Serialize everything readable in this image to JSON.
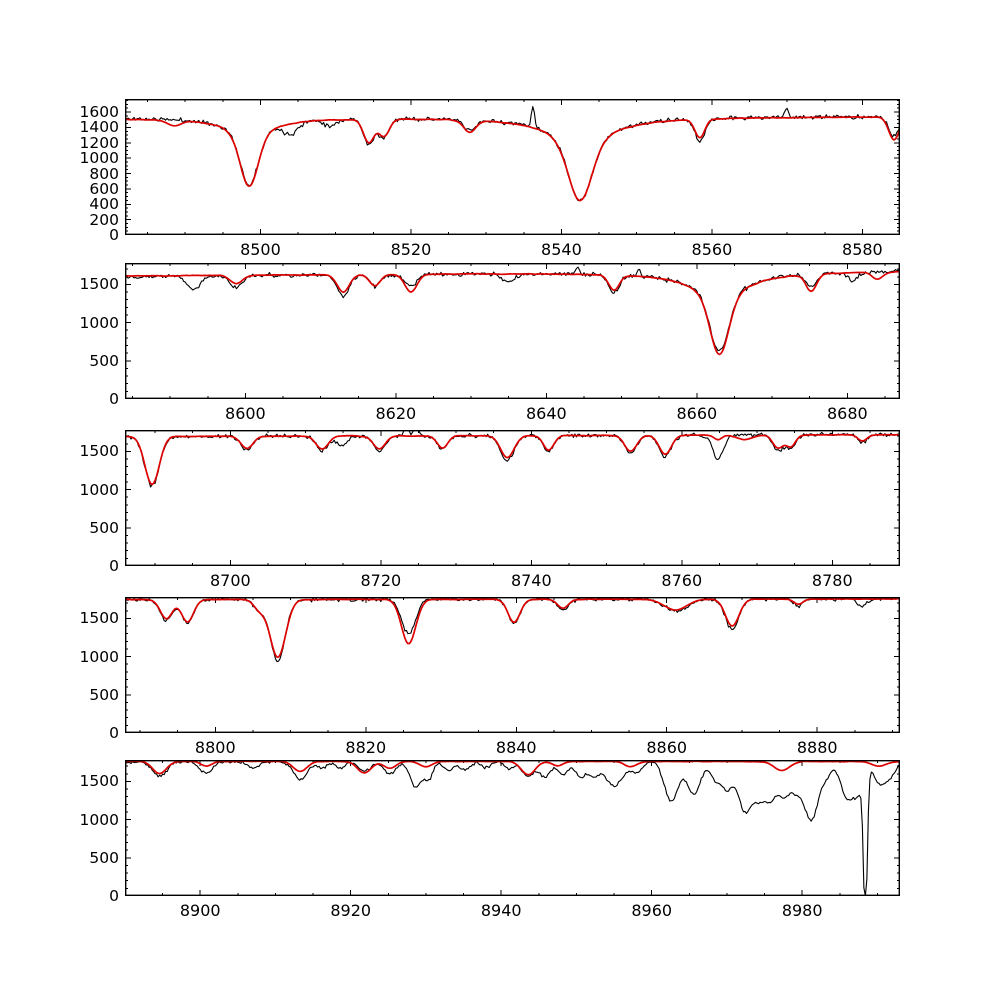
{
  "figure": {
    "background_color": "#ffffff",
    "axis_color": "#000000",
    "tick_label_color": "#000000"
  },
  "chart_data": {
    "type": "line",
    "grid": false,
    "legend": "none",
    "line_profile_format": "[center_wavelength, depth, gaussian_sigma, lorentz_gamma(optional), lorentz_depth(optional)]",
    "spike_format": "[center_wavelength, amplitude(+up/-down), sigma]",
    "series_styles": [
      {
        "name": "observed-spectrum",
        "color": "#000000"
      },
      {
        "name": "model-fit",
        "color": "#dd0000"
      }
    ],
    "panels": [
      {
        "type": "line",
        "xlim": [
          8482,
          8585
        ],
        "ylim": [
          0,
          1770
        ],
        "xticks": [
          8500,
          8520,
          8540,
          8560,
          8580
        ],
        "x_minor_step": 5,
        "yticks": [
          0,
          200,
          400,
          600,
          800,
          1000,
          1200,
          1400,
          1600
        ],
        "y_minor_step": 50,
        "continuum_observed": [
          1525,
          1545
        ],
        "continuum_model": [
          1516,
          1542
        ],
        "noise_observed": 13,
        "noise_model": 5,
        "seed": 11,
        "absorption_lines_model": [
          [
            8488.5,
            70,
            0.9
          ],
          [
            8498.5,
            610,
            1.15,
            3.2,
            270
          ],
          [
            8514.4,
            300,
            0.7
          ],
          [
            8516.4,
            220,
            0.7
          ],
          [
            8527.8,
            155,
            0.8
          ],
          [
            8542.5,
            690,
            1.5,
            4.5,
            390
          ],
          [
            8558.4,
            240,
            0.65
          ],
          [
            8584.2,
            300,
            0.7
          ]
        ],
        "absorption_lines_observed": [
          [
            8498.5,
            600,
            1.15,
            3.2,
            270
          ],
          [
            8504.0,
            140,
            1.0
          ],
          [
            8509.3,
            80,
            0.8
          ],
          [
            8514.4,
            330,
            0.7
          ],
          [
            8516.4,
            250,
            0.7
          ],
          [
            8527.8,
            140,
            0.8
          ],
          [
            8542.5,
            700,
            1.5,
            4.5,
            390
          ],
          [
            8558.4,
            300,
            0.65
          ],
          [
            8584.2,
            250,
            0.7
          ]
        ],
        "spikes_observed": [
          [
            8536.2,
            280,
            0.22
          ],
          [
            8569.9,
            130,
            0.25
          ]
        ]
      },
      {
        "type": "line",
        "xlim": [
          8584,
          8687
        ],
        "ylim": [
          0,
          1780
        ],
        "xticks": [
          8600,
          8620,
          8640,
          8660,
          8680
        ],
        "x_minor_step": 5,
        "yticks": [
          0,
          500,
          1000,
          1500
        ],
        "y_minor_step": 100,
        "continuum_observed": [
          1605,
          1680
        ],
        "continuum_model": [
          1612,
          1676
        ],
        "noise_observed": 13,
        "noise_model": 5,
        "seed": 22,
        "absorption_lines_model": [
          [
            8598.8,
            110,
            0.8
          ],
          [
            8613.0,
            230,
            0.8
          ],
          [
            8617.2,
            150,
            0.7
          ],
          [
            8622.0,
            230,
            0.8
          ],
          [
            8649.0,
            200,
            0.7
          ],
          [
            8663.0,
            720,
            1.2,
            4.2,
            360
          ],
          [
            8675.2,
            220,
            0.7
          ],
          [
            8684.0,
            90,
            0.7
          ]
        ],
        "absorption_lines_observed": [
          [
            8593.2,
            170,
            0.9
          ],
          [
            8598.8,
            160,
            0.8
          ],
          [
            8613.0,
            280,
            0.8
          ],
          [
            8617.2,
            150,
            0.7
          ],
          [
            8622.0,
            160,
            0.8
          ],
          [
            8635.0,
            90,
            0.8
          ],
          [
            8649.0,
            240,
            0.7
          ],
          [
            8663.0,
            690,
            1.2,
            4.2,
            350
          ],
          [
            8675.2,
            170,
            0.7
          ],
          [
            8680.8,
            120,
            0.6
          ]
        ],
        "spikes_observed": [
          [
            8644.2,
            100,
            0.25
          ],
          [
            8652.3,
            95,
            0.22
          ]
        ]
      },
      {
        "type": "line",
        "xlim": [
          8686,
          8789
        ],
        "ylim": [
          0,
          1780
        ],
        "xticks": [
          8700,
          8720,
          8740,
          8760,
          8780
        ],
        "x_minor_step": 5,
        "yticks": [
          0,
          500,
          1000,
          1500
        ],
        "y_minor_step": 100,
        "continuum_observed": [
          1690,
          1722
        ],
        "continuum_model": [
          1695,
          1718
        ],
        "noise_observed": 12,
        "noise_model": 4,
        "seed": 33,
        "absorption_lines_model": [
          [
            8689.6,
            630,
            0.95
          ],
          [
            8702.2,
            160,
            0.8
          ],
          [
            8712.2,
            170,
            0.8
          ],
          [
            8719.8,
            170,
            0.8
          ],
          [
            8728.2,
            160,
            0.7
          ],
          [
            8736.8,
            290,
            0.9
          ],
          [
            8742.3,
            190,
            0.7
          ],
          [
            8753.2,
            210,
            0.8
          ],
          [
            8757.8,
            250,
            0.8
          ],
          [
            8764.8,
            60,
            0.5
          ],
          [
            8768.3,
            60,
            1.0
          ],
          [
            8772.8,
            170,
            0.7
          ],
          [
            8774.5,
            150,
            0.6
          ],
          [
            8784.0,
            80,
            0.6
          ]
        ],
        "absorption_lines_observed": [
          [
            8689.6,
            650,
            0.95
          ],
          [
            8702.2,
            170,
            0.8
          ],
          [
            8712.2,
            190,
            0.8
          ],
          [
            8714.8,
            130,
            0.6
          ],
          [
            8719.8,
            190,
            0.8
          ],
          [
            8728.2,
            170,
            0.7
          ],
          [
            8736.8,
            330,
            0.9
          ],
          [
            8742.3,
            210,
            0.7
          ],
          [
            8753.2,
            230,
            0.8
          ],
          [
            8757.8,
            280,
            0.8
          ],
          [
            8764.8,
            320,
            0.7
          ],
          [
            8772.8,
            200,
            0.7
          ],
          [
            8774.5,
            170,
            0.6
          ],
          [
            8784.0,
            110,
            0.6
          ]
        ],
        "spikes_observed": [
          [
            8723.4,
            230,
            0.22
          ],
          [
            8724.7,
            300,
            0.25
          ]
        ]
      },
      {
        "type": "line",
        "xlim": [
          8788,
          8891
        ],
        "ylim": [
          0,
          1780
        ],
        "xticks": [
          8800,
          8820,
          8840,
          8860,
          8880
        ],
        "x_minor_step": 5,
        "yticks": [
          0,
          500,
          1000,
          1500
        ],
        "y_minor_step": 100,
        "continuum_observed": [
          1742,
          1758
        ],
        "continuum_model": [
          1746,
          1754
        ],
        "noise_observed": 11,
        "noise_model": 4,
        "seed": 44,
        "absorption_lines_model": [
          [
            8793.5,
            250,
            0.8
          ],
          [
            8796.3,
            290,
            0.8
          ],
          [
            8805.8,
            120,
            0.7
          ],
          [
            8808.3,
            760,
            1.05
          ],
          [
            8825.7,
            580,
            0.95
          ],
          [
            8839.7,
            300,
            0.8
          ],
          [
            8846.2,
            120,
            0.7
          ],
          [
            8861.2,
            140,
            1.5
          ],
          [
            8868.7,
            350,
            0.9
          ],
          [
            8877.5,
            70,
            0.6
          ]
        ],
        "absorption_lines_observed": [
          [
            8793.5,
            270,
            0.8
          ],
          [
            8796.3,
            300,
            0.8
          ],
          [
            8805.8,
            130,
            0.7
          ],
          [
            8808.3,
            800,
            1.0
          ],
          [
            8825.7,
            450,
            0.9
          ],
          [
            8839.7,
            310,
            0.8
          ],
          [
            8846.2,
            140,
            0.7
          ],
          [
            8861.2,
            160,
            1.5
          ],
          [
            8868.7,
            400,
            0.9
          ],
          [
            8877.5,
            90,
            0.6
          ],
          [
            8886.0,
            90,
            0.7
          ]
        ],
        "spikes_observed": []
      },
      {
        "type": "line",
        "xlim": [
          8890,
          8993
        ],
        "ylim": [
          0,
          1780
        ],
        "xticks": [
          8900,
          8920,
          8940,
          8960,
          8980
        ],
        "x_minor_step": 5,
        "yticks": [
          0,
          500,
          1000,
          1500
        ],
        "y_minor_step": 100,
        "continuum_observed": [
          1755,
          1760
        ],
        "continuum_model": [
          1762,
          1760
        ],
        "noise_observed": 9,
        "noise_model": 3,
        "seed": 55,
        "absorption_lines_model": [
          [
            8894.6,
            160,
            0.9
          ],
          [
            8900.8,
            60,
            0.7
          ],
          [
            8913.3,
            130,
            0.9
          ],
          [
            8921.8,
            150,
            0.9
          ],
          [
            8925.2,
            90,
            0.8
          ],
          [
            8930.0,
            70,
            0.8
          ],
          [
            8943.6,
            175,
            0.9
          ],
          [
            8947.5,
            60,
            0.7
          ],
          [
            8957.2,
            70,
            0.8
          ],
          [
            8977.3,
            120,
            1.0
          ],
          [
            8990.2,
            60,
            1.0
          ]
        ],
        "absorption_lines_observed": [
          [
            8894.6,
            190,
            0.9
          ],
          [
            8900.8,
            150,
            0.8
          ],
          [
            8907.0,
            80,
            0.7
          ],
          [
            8913.3,
            230,
            0.9
          ],
          [
            8916.2,
            90,
            0.6
          ],
          [
            8918.6,
            80,
            0.6
          ],
          [
            8921.8,
            120,
            0.8
          ],
          [
            8925.2,
            160,
            0.8
          ],
          [
            8928.6,
            330,
            0.7
          ],
          [
            8930.3,
            230,
            0.6
          ],
          [
            8933.0,
            120,
            0.6
          ],
          [
            8935.2,
            110,
            0.7
          ],
          [
            8938.0,
            70,
            0.6
          ],
          [
            8941.0,
            90,
            0.6
          ],
          [
            8943.6,
            190,
            0.8
          ],
          [
            8945.8,
            200,
            0.7
          ],
          [
            8948.2,
            170,
            0.7
          ],
          [
            8950.6,
            200,
            0.7
          ],
          [
            8952.3,
            170,
            0.6
          ],
          [
            8955.0,
            320,
            1.2
          ],
          [
            8958.0,
            130,
            0.7
          ],
          [
            8962.6,
            520,
            0.9
          ],
          [
            8965.6,
            430,
            0.9
          ],
          [
            8968.6,
            240,
            0.7
          ],
          [
            8970.1,
            330,
            0.7
          ],
          [
            8972.4,
            660,
            0.9
          ],
          [
            8974.2,
            380,
            0.7
          ],
          [
            8975.7,
            470,
            0.8
          ],
          [
            8977.6,
            430,
            0.8
          ],
          [
            8979.2,
            280,
            0.7
          ],
          [
            8981.2,
            760,
            1.0
          ],
          [
            8983.3,
            140,
            0.6
          ],
          [
            8986.0,
            470,
            0.9
          ],
          [
            8987.6,
            330,
            0.7
          ],
          [
            8990.3,
            280,
            0.8
          ],
          [
            8991.8,
            170,
            0.7
          ]
        ],
        "spikes_observed": [
          [
            8988.4,
            -1900,
            0.25
          ]
        ]
      }
    ]
  }
}
